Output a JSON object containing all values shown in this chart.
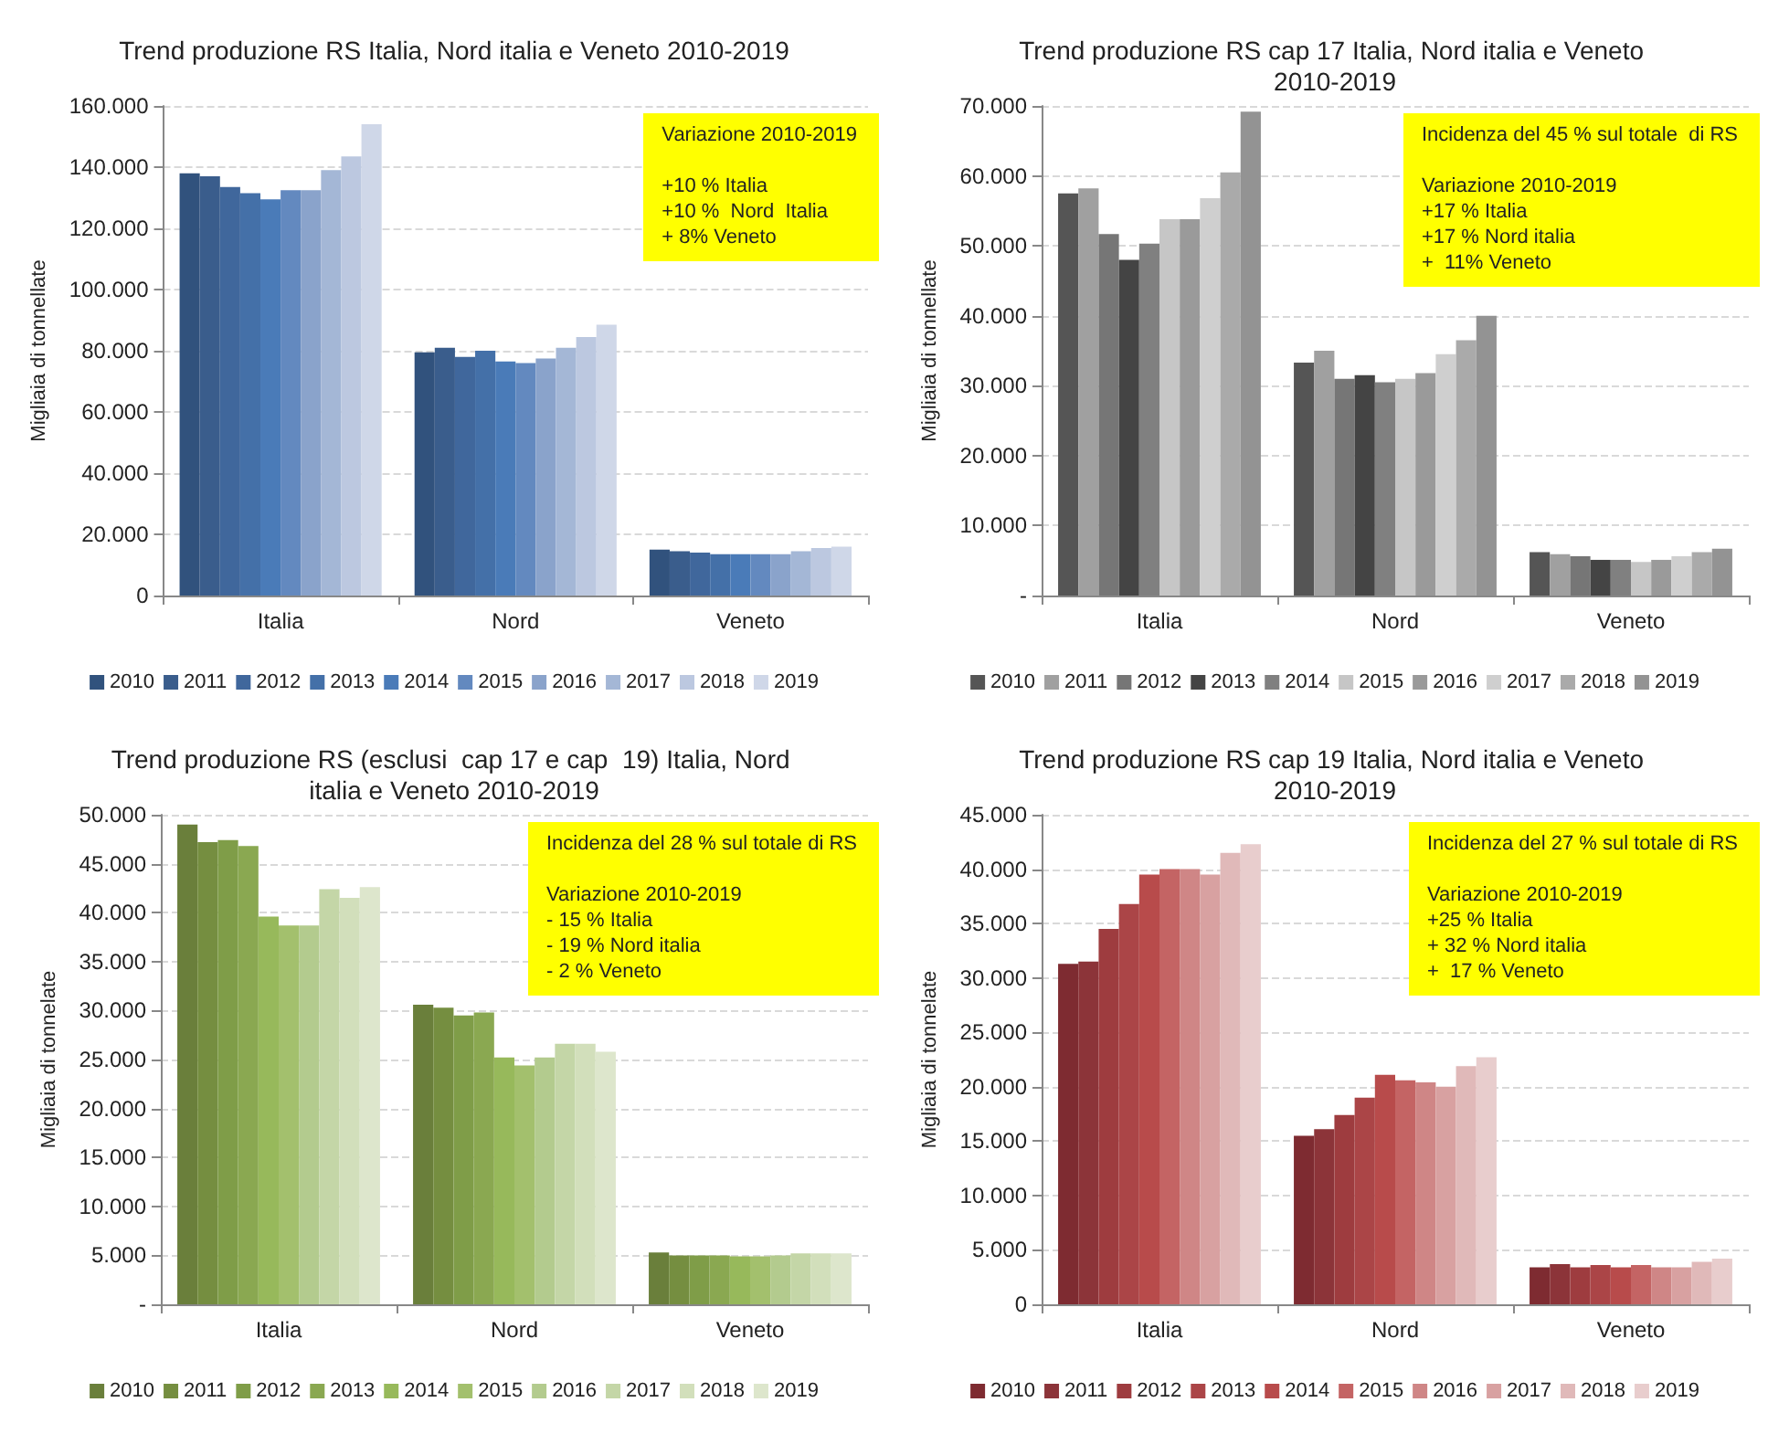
{
  "chart_data": [
    {
      "type": "bar",
      "title": "Trend produzione RS Italia, Nord italia e Veneto 2010-2019",
      "ylabel": "Migliaia di tonnellate",
      "categories": [
        "Italia",
        "Nord",
        "Veneto"
      ],
      "ylim": [
        0,
        160000
      ],
      "yticks": [
        {
          "value": 0,
          "label": "0"
        },
        {
          "value": 20000,
          "label": "20.000"
        },
        {
          "value": 40000,
          "label": "40.000"
        },
        {
          "value": 60000,
          "label": "60.000"
        },
        {
          "value": 80000,
          "label": "80.000"
        },
        {
          "value": 100000,
          "label": "100.000"
        },
        {
          "value": 120000,
          "label": "120.000"
        },
        {
          "value": 140000,
          "label": "140.000"
        },
        {
          "value": 160000,
          "label": "160.000"
        }
      ],
      "grid": "y",
      "legend": "bottom",
      "annotations": [
        "Variazione 2010-2019\n\n+10 % Italia\n+10 %  Nord  Italia\n+ 8% Veneto"
      ],
      "series": [
        {
          "name": "2010",
          "color": "#31527d",
          "values": [
            138000,
            79500,
            15000
          ]
        },
        {
          "name": "2011",
          "color": "#3a5d8c",
          "values": [
            137000,
            81000,
            14500
          ]
        },
        {
          "name": "2012",
          "color": "#40679c",
          "values": [
            133500,
            78000,
            14000
          ]
        },
        {
          "name": "2013",
          "color": "#4470a8",
          "values": [
            131500,
            80000,
            13500
          ]
        },
        {
          "name": "2014",
          "color": "#4a7bb8",
          "values": [
            129500,
            76500,
            13500
          ]
        },
        {
          "name": "2015",
          "color": "#6389bf",
          "values": [
            132500,
            76000,
            13500
          ]
        },
        {
          "name": "2016",
          "color": "#8aa3cb",
          "values": [
            132500,
            77500,
            13500
          ]
        },
        {
          "name": "2017",
          "color": "#a4b7d6",
          "values": [
            139000,
            81000,
            14500
          ]
        },
        {
          "name": "2018",
          "color": "#bcc8e0",
          "values": [
            143500,
            84500,
            15500
          ]
        },
        {
          "name": "2019",
          "color": "#cfd7e8",
          "values": [
            154000,
            88500,
            16000
          ]
        }
      ]
    },
    {
      "type": "bar",
      "title": "Trend produzione RS cap 17 Italia, Nord italia e Veneto 2010-2019",
      "ylabel": "Migliaia di tonnellate",
      "categories": [
        "Italia",
        "Nord",
        "Veneto"
      ],
      "ylim": [
        0,
        70000
      ],
      "yticks": [
        {
          "value": 0,
          "label": "-"
        },
        {
          "value": 10000,
          "label": "10.000"
        },
        {
          "value": 20000,
          "label": "20.000"
        },
        {
          "value": 30000,
          "label": "30.000"
        },
        {
          "value": 40000,
          "label": "40.000"
        },
        {
          "value": 50000,
          "label": "50.000"
        },
        {
          "value": 60000,
          "label": "60.000"
        },
        {
          "value": 70000,
          "label": "70.000"
        }
      ],
      "grid": "y",
      "legend": "bottom",
      "annotations": [
        "Incidenza del 45 % sul totale  di RS\n\nVariazione 2010-2019\n+17 % Italia\n+17 % Nord italia\n+  11% Veneto"
      ],
      "series": [
        {
          "name": "2010",
          "color": "#555555",
          "values": [
            57500,
            33300,
            6200
          ]
        },
        {
          "name": "2011",
          "color": "#a0a0a0",
          "values": [
            58200,
            35000,
            5900
          ]
        },
        {
          "name": "2012",
          "color": "#767676",
          "values": [
            51700,
            31000,
            5600
          ]
        },
        {
          "name": "2013",
          "color": "#444444",
          "values": [
            48000,
            31500,
            5100
          ]
        },
        {
          "name": "2014",
          "color": "#808080",
          "values": [
            50300,
            30500,
            5100
          ]
        },
        {
          "name": "2015",
          "color": "#c6c6c6",
          "values": [
            53800,
            31000,
            4800
          ]
        },
        {
          "name": "2016",
          "color": "#9a9a9a",
          "values": [
            53800,
            31800,
            5100
          ]
        },
        {
          "name": "2017",
          "color": "#cfcfcf",
          "values": [
            56800,
            34500,
            5600
          ]
        },
        {
          "name": "2018",
          "color": "#aaaaaa",
          "values": [
            60500,
            36500,
            6200
          ]
        },
        {
          "name": "2019",
          "color": "#939393",
          "values": [
            69200,
            40000,
            6700
          ]
        }
      ]
    },
    {
      "type": "bar",
      "title": "Trend produzione RS (esclusi  cap 17 e cap  19) Italia, Nord italia e Veneto 2010-2019",
      "ylabel": "Migliaia di tonnelate",
      "categories": [
        "Italia",
        "Nord",
        "Veneto"
      ],
      "ylim": [
        0,
        50000
      ],
      "yticks": [
        {
          "value": 0,
          "label": "-"
        },
        {
          "value": 5000,
          "label": "5.000"
        },
        {
          "value": 10000,
          "label": "10.000"
        },
        {
          "value": 15000,
          "label": "15.000"
        },
        {
          "value": 20000,
          "label": "20.000"
        },
        {
          "value": 25000,
          "label": "25.000"
        },
        {
          "value": 30000,
          "label": "30.000"
        },
        {
          "value": 35000,
          "label": "35.000"
        },
        {
          "value": 40000,
          "label": "40.000"
        },
        {
          "value": 45000,
          "label": "45.000"
        },
        {
          "value": 50000,
          "label": "50.000"
        }
      ],
      "grid": "y",
      "legend": "bottom",
      "annotations": [
        "Incidenza del 28 % sul totale di RS\n\nVariazione 2010-2019\n- 15 % Italia\n- 19 % Nord italia\n- 2 % Veneto"
      ],
      "series": [
        {
          "name": "2010",
          "color": "#6a7f3b",
          "values": [
            49000,
            30600,
            5300
          ]
        },
        {
          "name": "2011",
          "color": "#758e40",
          "values": [
            47200,
            30300,
            5000
          ]
        },
        {
          "name": "2012",
          "color": "#7f9d48",
          "values": [
            47400,
            29500,
            5000
          ]
        },
        {
          "name": "2013",
          "color": "#8aa851",
          "values": [
            46800,
            29800,
            5000
          ]
        },
        {
          "name": "2014",
          "color": "#97b95b",
          "values": [
            39600,
            25200,
            4900
          ]
        },
        {
          "name": "2015",
          "color": "#a3c06d",
          "values": [
            38700,
            24400,
            4900
          ]
        },
        {
          "name": "2016",
          "color": "#b3cb8e",
          "values": [
            38700,
            25200,
            5000
          ]
        },
        {
          "name": "2017",
          "color": "#c4d6a7",
          "values": [
            42400,
            26600,
            5200
          ]
        },
        {
          "name": "2018",
          "color": "#d2dfbb",
          "values": [
            41500,
            26600,
            5200
          ]
        },
        {
          "name": "2019",
          "color": "#dde6cc",
          "values": [
            42600,
            25800,
            5200
          ]
        }
      ]
    },
    {
      "type": "bar",
      "title": "Trend produzione RS cap 19 Italia, Nord italia e Veneto 2010-2019",
      "ylabel": "Migliaia di tonnelate",
      "categories": [
        "Italia",
        "Nord",
        "Veneto"
      ],
      "ylim": [
        0,
        45000
      ],
      "yticks": [
        {
          "value": 0,
          "label": "0"
        },
        {
          "value": 5000,
          "label": "5.000"
        },
        {
          "value": 10000,
          "label": "10.000"
        },
        {
          "value": 15000,
          "label": "15.000"
        },
        {
          "value": 20000,
          "label": "20.000"
        },
        {
          "value": 25000,
          "label": "25.000"
        },
        {
          "value": 30000,
          "label": "30.000"
        },
        {
          "value": 35000,
          "label": "35.000"
        },
        {
          "value": 40000,
          "label": "40.000"
        },
        {
          "value": 45000,
          "label": "45.000"
        }
      ],
      "grid": "y",
      "legend": "bottom",
      "annotations": [
        "Incidenza del 27 % sul totale di RS\n\nVariazione 2010-2019\n+25 % Italia\n+ 32 % Nord italia\n+  17 % Veneto"
      ],
      "series": [
        {
          "name": "2010",
          "color": "#7e2b31",
          "values": [
            31300,
            15500,
            3400
          ]
        },
        {
          "name": "2011",
          "color": "#8c3439",
          "values": [
            31500,
            16100,
            3700
          ]
        },
        {
          "name": "2012",
          "color": "#9e3c3f",
          "values": [
            34500,
            17400,
            3400
          ]
        },
        {
          "name": "2013",
          "color": "#ab4547",
          "values": [
            36800,
            19000,
            3600
          ]
        },
        {
          "name": "2014",
          "color": "#b84b4b",
          "values": [
            39500,
            21100,
            3400
          ]
        },
        {
          "name": "2015",
          "color": "#c46464",
          "values": [
            40000,
            20600,
            3600
          ]
        },
        {
          "name": "2016",
          "color": "#cf8686",
          "values": [
            40000,
            20400,
            3400
          ]
        },
        {
          "name": "2017",
          "color": "#d8a1a1",
          "values": [
            39500,
            20000,
            3400
          ]
        },
        {
          "name": "2018",
          "color": "#e0b9b9",
          "values": [
            41500,
            21900,
            3900
          ]
        },
        {
          "name": "2019",
          "color": "#e8cdcd",
          "values": [
            42300,
            22700,
            4200
          ]
        }
      ]
    }
  ]
}
